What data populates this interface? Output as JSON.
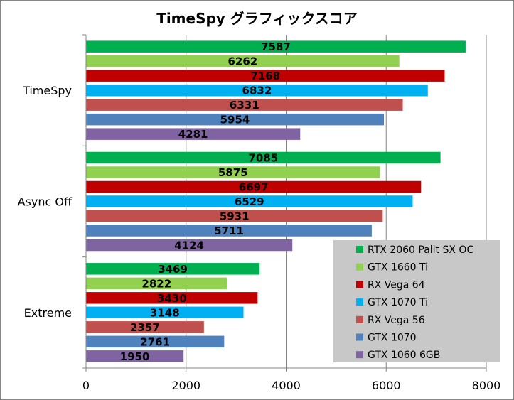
{
  "chart_data": {
    "type": "bar",
    "orientation": "horizontal",
    "title": "TimeSpy グラフィックスコア",
    "categories": [
      "TimeSpy",
      "Async Off",
      "Extreme"
    ],
    "series": [
      {
        "name": "RTX 2060 Palit SX OC",
        "color": "#00b050",
        "values": [
          7587,
          7085,
          3469
        ]
      },
      {
        "name": "GTX 1660 Ti",
        "color": "#92d050",
        "values": [
          6262,
          5875,
          2822
        ]
      },
      {
        "name": "RX Vega 64",
        "color": "#c00000",
        "values": [
          7168,
          6697,
          3430
        ]
      },
      {
        "name": "GTX 1070 Ti",
        "color": "#00b0f0",
        "values": [
          6832,
          6529,
          3148
        ]
      },
      {
        "name": "RX Vega 56",
        "color": "#c0504d",
        "values": [
          6331,
          5931,
          2357
        ]
      },
      {
        "name": "GTX 1070",
        "color": "#4f81bd",
        "values": [
          5954,
          5711,
          2761
        ]
      },
      {
        "name": "GTX 1060 6GB",
        "color": "#8064a2",
        "values": [
          4281,
          4124,
          1950
        ]
      }
    ],
    "xlim": [
      0,
      8000
    ],
    "xticks": [
      0,
      2000,
      4000,
      6000,
      8000
    ],
    "grid": true,
    "legend_position": "bottom-right",
    "legend_background": "#c8c8c8"
  }
}
